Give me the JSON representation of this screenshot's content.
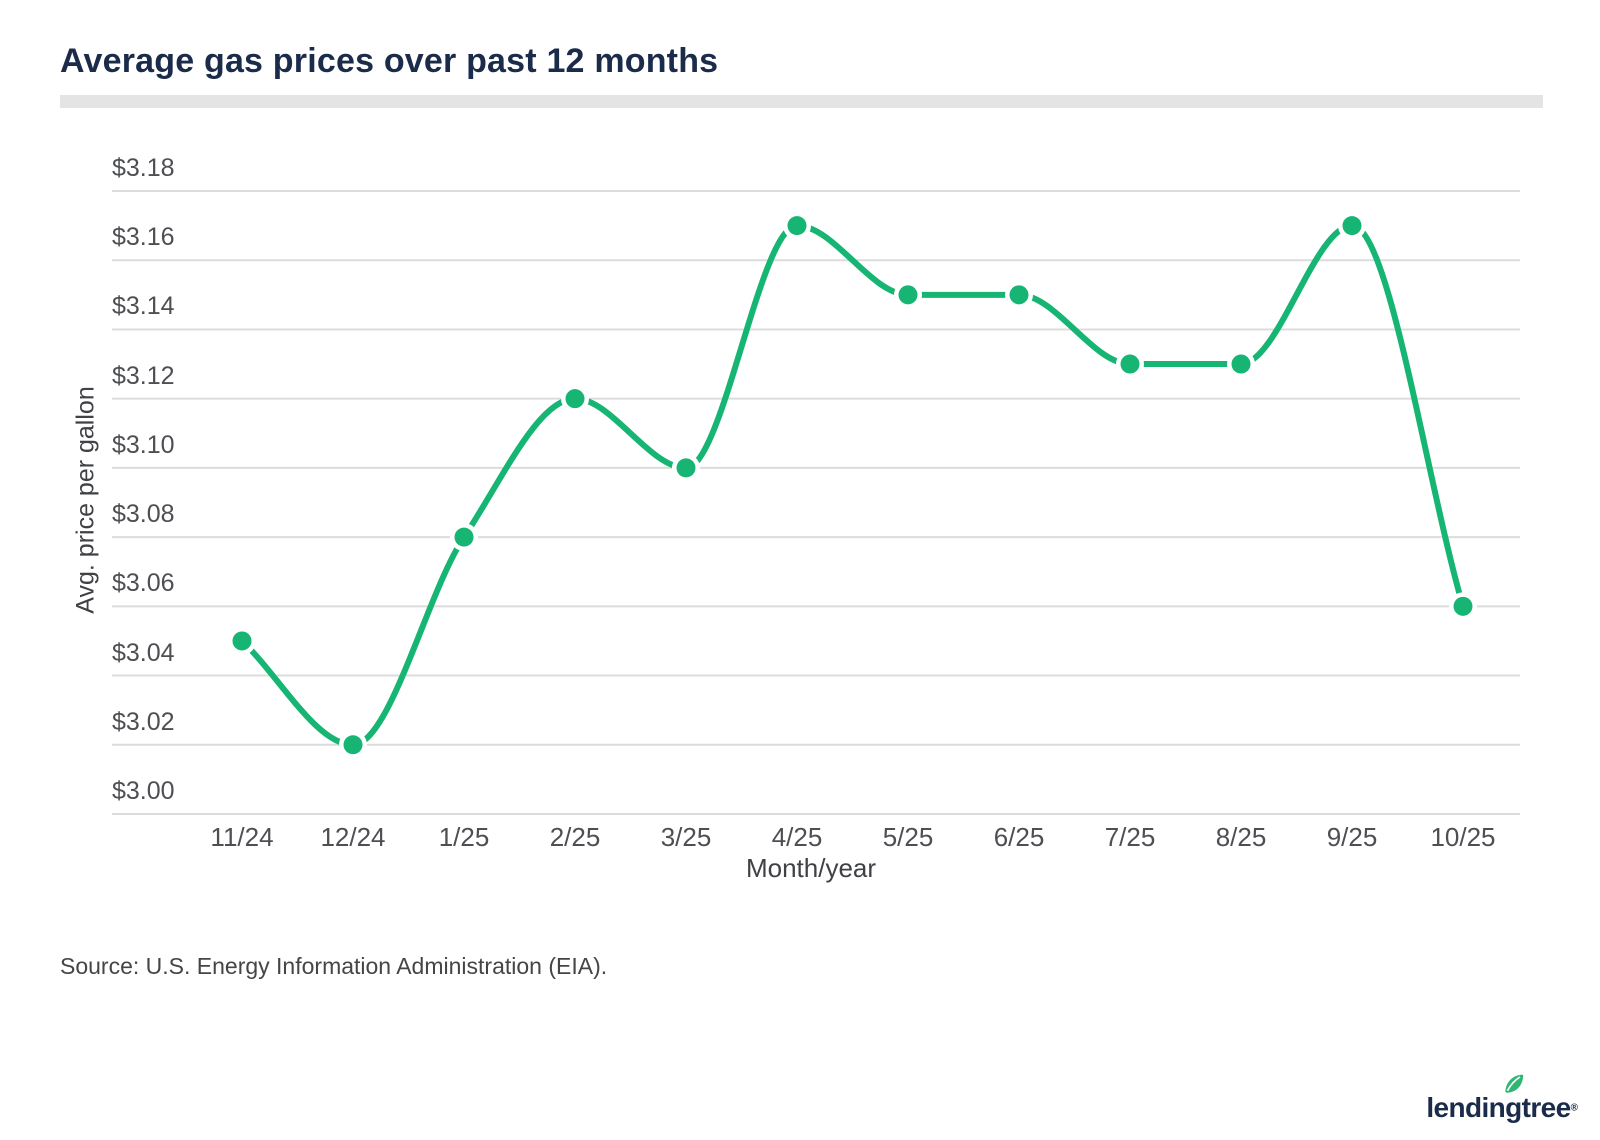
{
  "title": "Average gas prices over past 12 months",
  "source_note": "Source: U.S. Energy Information Administration (EIA).",
  "logo": {
    "text": "lendingtree",
    "registered": "®"
  },
  "colors": {
    "title_navy": "#1b2b4a",
    "line_green": "#16b573",
    "marker_green": "#16b573",
    "gridline_gray": "#dcdcdc",
    "tick_gray": "#4d4f53",
    "divider_gray": "#e4e4e4",
    "leaf_green": "#2fb673"
  },
  "chart_data": {
    "type": "line",
    "title": "Average gas prices over past 12 months",
    "categories": [
      "11/24",
      "12/24",
      "1/25",
      "2/25",
      "3/25",
      "4/25",
      "5/25",
      "6/25",
      "7/25",
      "8/25",
      "9/25",
      "10/25"
    ],
    "values": [
      3.05,
      3.02,
      3.08,
      3.12,
      3.1,
      3.17,
      3.15,
      3.15,
      3.13,
      3.13,
      3.17,
      3.06
    ],
    "xlabel": "Month/year",
    "ylabel": "Avg. price per gallon",
    "ylim": [
      3.0,
      3.18
    ],
    "yticks": [
      {
        "label": "$3.18",
        "value": 3.18
      },
      {
        "label": "$3.16",
        "value": 3.16
      },
      {
        "label": "$3.14",
        "value": 3.14
      },
      {
        "label": "$3.12",
        "value": 3.12
      },
      {
        "label": "$3.10",
        "value": 3.1
      },
      {
        "label": "$3.08",
        "value": 3.08
      },
      {
        "label": "$3.06",
        "value": 3.06
      },
      {
        "label": "$3.04",
        "value": 3.04
      },
      {
        "label": "$3.02",
        "value": 3.02
      },
      {
        "label": "$3.00",
        "value": 3.0
      }
    ],
    "grid": true,
    "legend": false,
    "curve": "smooth-monotone",
    "line_color": "#16b573",
    "marker_color": "#16b573"
  }
}
